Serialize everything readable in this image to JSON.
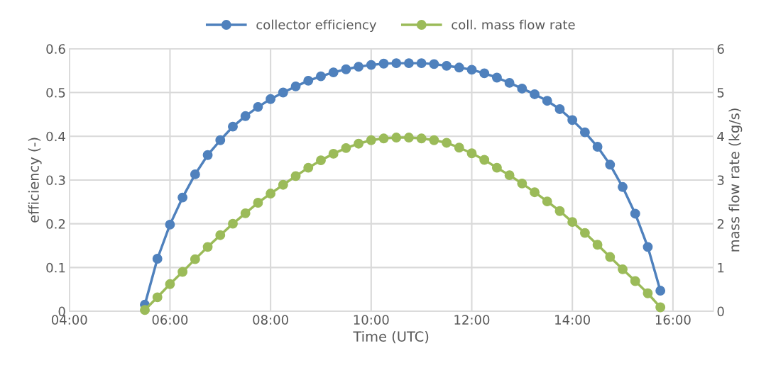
{
  "chart_data": {
    "type": "line",
    "xlabel": "Time (UTC)",
    "ylabel": "efficiency (-)",
    "y2label": "mass flow rate (kg/s)",
    "x": [
      5.5,
      5.75,
      6.0,
      6.25,
      6.5,
      6.75,
      7.0,
      7.25,
      7.5,
      7.75,
      8.0,
      8.25,
      8.5,
      8.75,
      9.0,
      9.25,
      9.5,
      9.75,
      10.0,
      10.25,
      10.5,
      10.75,
      11.0,
      11.25,
      11.5,
      11.75,
      12.0,
      12.25,
      12.5,
      12.75,
      13.0,
      13.25,
      13.5,
      13.75,
      14.0,
      14.25,
      14.5,
      14.75,
      15.0,
      15.25,
      15.5,
      15.75
    ],
    "series": [
      {
        "name": "collector efficiency",
        "color": "#4f81bd",
        "values": [
          0.015,
          0.12,
          0.198,
          0.26,
          0.313,
          0.357,
          0.391,
          0.422,
          0.446,
          0.467,
          0.485,
          0.5,
          0.514,
          0.527,
          0.537,
          0.546,
          0.553,
          0.559,
          0.563,
          0.566,
          0.567,
          0.567,
          0.567,
          0.565,
          0.561,
          0.557,
          0.552,
          0.544,
          0.534,
          0.522,
          0.509,
          0.496,
          0.481,
          0.462,
          0.437,
          0.409,
          0.376,
          0.335,
          0.284,
          0.223,
          0.147,
          0.047
        ]
      },
      {
        "name": "coll. mass flow rate",
        "color": "#9bbb59",
        "axis": "y2",
        "values": [
          0.03,
          0.32,
          0.62,
          0.9,
          1.19,
          1.47,
          1.74,
          2.0,
          2.24,
          2.48,
          2.69,
          2.89,
          3.09,
          3.28,
          3.45,
          3.6,
          3.73,
          3.83,
          3.91,
          3.95,
          3.97,
          3.97,
          3.95,
          3.91,
          3.85,
          3.74,
          3.61,
          3.46,
          3.28,
          3.11,
          2.92,
          2.72,
          2.51,
          2.29,
          2.04,
          1.79,
          1.52,
          1.24,
          0.96,
          0.69,
          0.41,
          0.09
        ]
      }
    ],
    "xlim": [
      4,
      16.8
    ],
    "xticks": [
      {
        "value": 4,
        "label": "04:00"
      },
      {
        "value": 6,
        "label": "06:00"
      },
      {
        "value": 8,
        "label": "08:00"
      },
      {
        "value": 10,
        "label": "10:00"
      },
      {
        "value": 12,
        "label": "12:00"
      },
      {
        "value": 14,
        "label": "14:00"
      },
      {
        "value": 16,
        "label": "16:00"
      }
    ],
    "ylim": [
      0,
      0.6
    ],
    "yticks": [
      0,
      0.1,
      0.2,
      0.3,
      0.4,
      0.5,
      0.6
    ],
    "y2lim": [
      0,
      6
    ],
    "y2ticks": [
      0,
      1,
      2,
      3,
      4,
      5,
      6
    ],
    "grid": true,
    "legend": "top",
    "marker": "circle",
    "line_style": "solid"
  }
}
